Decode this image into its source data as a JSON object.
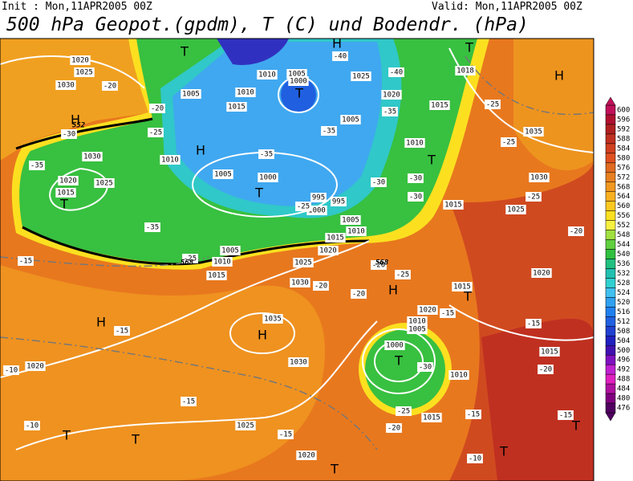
{
  "header": {
    "init": "Init : Mon,11APR2005 00Z",
    "valid": "Valid: Mon,11APR2005 00Z",
    "title": "500 hPa Geopot.(gpdm), T (C) und Bodendr. (hPa)"
  },
  "colorbar": {
    "labels": [
      600,
      596,
      592,
      588,
      584,
      580,
      576,
      572,
      568,
      564,
      560,
      556,
      552,
      548,
      544,
      540,
      536,
      532,
      528,
      524,
      520,
      516,
      512,
      508,
      504,
      500,
      496,
      492,
      488,
      484,
      480,
      476
    ],
    "colors": [
      "#c0105a",
      "#b01030",
      "#b02020",
      "#c03020",
      "#d04020",
      "#e05020",
      "#e06a20",
      "#e88020",
      "#f09820",
      "#f8b020",
      "#fcc820",
      "#fce020",
      "#f8f040",
      "#a0e040",
      "#60d040",
      "#30c040",
      "#20c080",
      "#20c0b0",
      "#30d0d0",
      "#40c0f0",
      "#30a0f0",
      "#2080f0",
      "#2060e0",
      "#2040d0",
      "#2020c0",
      "#4010b0",
      "#8010c0",
      "#c020d0",
      "#e020c0",
      "#b010a0",
      "#800080",
      "#500060"
    ]
  },
  "map": {
    "pressure_labels": [
      "1020",
      "1025",
      "1030",
      "1005",
      "1010",
      "1005",
      "1000",
      "1025",
      "1020",
      "1015",
      "1018",
      "1015",
      "1010",
      "1005",
      "1010",
      "1030",
      "1025",
      "1020",
      "1015",
      "1010",
      "1005",
      "1000",
      "995",
      "995",
      "1000",
      "1005",
      "1010",
      "1015",
      "1015",
      "1025",
      "1035",
      "1030",
      "1020",
      "1025",
      "1030",
      "1005",
      "1010",
      "1015",
      "1035",
      "1030",
      "1020",
      "1025",
      "1020",
      "1015",
      "1010",
      "1020",
      "1015",
      "1015",
      "1020",
      "1010",
      "1005",
      "1000"
    ],
    "temperature_labels": [
      "-40",
      "-40",
      "-35",
      "-35",
      "-35",
      "-30",
      "-30",
      "-30",
      "-25",
      "-25",
      "-20",
      "-20",
      "-25",
      "-30",
      "-35",
      "-35",
      "-15",
      "-20",
      "-20",
      "-20",
      "-25",
      "-15",
      "-10",
      "-15",
      "-10",
      "-15",
      "-20",
      "-25",
      "-30",
      "-15",
      "-15",
      "-15",
      "-10",
      "-20",
      "-25",
      "-25",
      "-25",
      "-20",
      "-15"
    ],
    "contour_labels": [
      "552",
      "568",
      "568"
    ],
    "center_marks": [
      "H",
      "H",
      "H",
      "H",
      "H",
      "H",
      "T",
      "T",
      "T",
      "T",
      "T",
      "T",
      "T",
      "T",
      "T",
      "T",
      "T",
      "T",
      "T",
      "H"
    ]
  }
}
